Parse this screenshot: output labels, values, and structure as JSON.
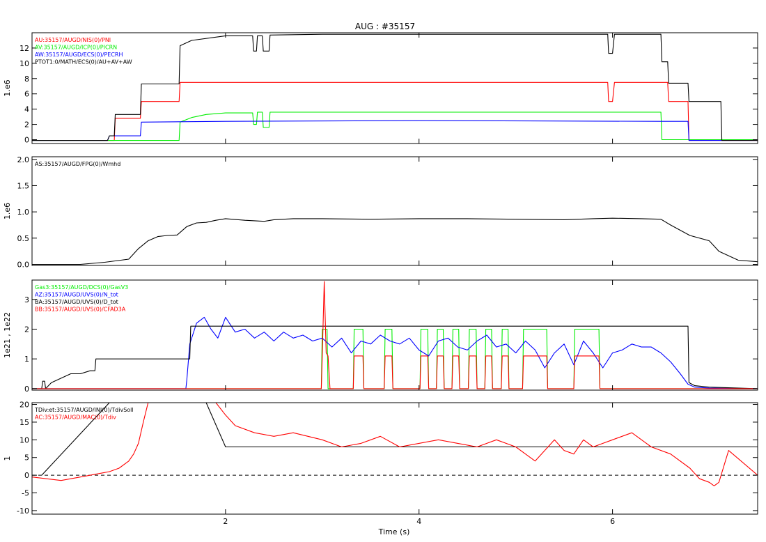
{
  "title": "AUG : #35157",
  "xlabel": "Time (s)",
  "colors": {
    "black": "#000000",
    "red": "#ff0000",
    "green": "#00ee00",
    "blue": "#0000ff"
  },
  "xaxis": {
    "range": [
      0.0,
      7.5
    ],
    "ticks": [
      2,
      4,
      6
    ],
    "tick_labels": [
      "2",
      "4",
      "6"
    ]
  },
  "chart_data": [
    {
      "type": "line",
      "ylabel": "1.e6",
      "ylim": [
        -0.5,
        14.0
      ],
      "yticks": [
        0,
        2,
        4,
        6,
        8,
        10,
        12
      ],
      "ytick_labels": [
        "0",
        "2",
        "4",
        "6",
        "8",
        "10",
        "12"
      ],
      "legend_placement": "top-left",
      "series": [
        {
          "name": "AU:35157/AUGD/NIS(0)/PNI",
          "color": "#ff0000",
          "x": [
            0.0,
            0.85,
            0.86,
            1.12,
            1.13,
            1.52,
            1.53,
            5.95,
            5.96,
            6.0,
            6.02,
            6.57,
            6.58,
            6.78,
            6.79,
            7.5
          ],
          "y": [
            -0.1,
            -0.1,
            2.8,
            2.8,
            5.0,
            5.0,
            7.5,
            7.5,
            5.0,
            5.0,
            7.5,
            7.5,
            5.0,
            5.0,
            -0.1,
            -0.1
          ]
        },
        {
          "name": "AV:35157/AUGD/ICP(0)/PICRN",
          "color": "#00ee00",
          "x": [
            0.0,
            1.52,
            1.53,
            1.65,
            1.8,
            2.0,
            2.28,
            2.29,
            2.32,
            2.33,
            2.38,
            2.39,
            2.45,
            2.46,
            2.5,
            2.52,
            6.5,
            6.51,
            7.5
          ],
          "y": [
            -0.1,
            -0.1,
            2.3,
            2.9,
            3.3,
            3.5,
            3.5,
            2.0,
            2.0,
            3.6,
            3.6,
            1.6,
            1.6,
            3.6,
            3.6,
            3.6,
            3.6,
            0.0,
            0.0
          ]
        },
        {
          "name": "AW:35157/AUGD/ECS(0)/PECRH",
          "color": "#0000ff",
          "x": [
            0.0,
            0.78,
            0.8,
            1.12,
            1.13,
            2.0,
            4.0,
            6.5,
            6.78,
            6.79,
            7.5
          ],
          "y": [
            -0.1,
            -0.1,
            0.5,
            0.5,
            2.3,
            2.4,
            2.5,
            2.4,
            2.4,
            -0.1,
            -0.1
          ]
        },
        {
          "name": "PTOT1:0/MATH/ECS(0)/AU+AV+AW",
          "color": "#000000",
          "x": [
            0.0,
            0.78,
            0.8,
            0.85,
            0.86,
            1.12,
            1.13,
            1.52,
            1.53,
            1.65,
            2.0,
            2.28,
            2.29,
            2.32,
            2.33,
            2.38,
            2.39,
            2.45,
            2.46,
            3.0,
            5.95,
            5.96,
            6.0,
            6.02,
            6.5,
            6.51,
            6.57,
            6.58,
            6.78,
            6.79,
            7.12,
            7.13,
            7.5
          ],
          "y": [
            -0.1,
            -0.1,
            0.5,
            0.5,
            3.3,
            3.3,
            7.3,
            7.3,
            12.3,
            13.0,
            13.6,
            13.6,
            11.6,
            11.6,
            13.6,
            13.6,
            11.6,
            11.6,
            13.7,
            13.8,
            13.8,
            11.3,
            11.3,
            13.8,
            13.8,
            10.2,
            10.2,
            7.4,
            7.4,
            5.0,
            5.0,
            -0.1,
            -0.1
          ]
        }
      ]
    },
    {
      "type": "line",
      "ylabel": "1.e6",
      "ylim": [
        -0.02,
        2.05
      ],
      "yticks": [
        0.0,
        0.5,
        1.0,
        1.5,
        2.0
      ],
      "ytick_labels": [
        "0.0",
        "0.5",
        "1.0",
        "1.5",
        "2.0"
      ],
      "legend_placement": "top-left",
      "series": [
        {
          "name": "AS:35157/AUGD/FPG(0)/Wmhd",
          "color": "#000000",
          "x": [
            0.0,
            0.5,
            0.75,
            1.0,
            1.1,
            1.2,
            1.3,
            1.4,
            1.5,
            1.6,
            1.7,
            1.8,
            1.9,
            2.0,
            2.2,
            2.4,
            2.5,
            2.7,
            3.0,
            3.5,
            4.0,
            4.5,
            5.0,
            5.5,
            5.8,
            6.0,
            6.3,
            6.5,
            6.6,
            6.8,
            7.0,
            7.1,
            7.3,
            7.5
          ],
          "y": [
            0.0,
            0.0,
            0.04,
            0.1,
            0.3,
            0.45,
            0.53,
            0.55,
            0.56,
            0.72,
            0.79,
            0.8,
            0.84,
            0.87,
            0.84,
            0.82,
            0.85,
            0.87,
            0.87,
            0.86,
            0.87,
            0.87,
            0.86,
            0.85,
            0.87,
            0.88,
            0.87,
            0.86,
            0.75,
            0.55,
            0.45,
            0.25,
            0.08,
            0.05
          ]
        }
      ]
    },
    {
      "type": "line",
      "ylabel": "1e21 , 1e22",
      "ylim": [
        -0.05,
        3.65
      ],
      "yticks": [
        0,
        1,
        2,
        3
      ],
      "ytick_labels": [
        "0",
        "1",
        "2",
        "3"
      ],
      "legend_placement": "top-left",
      "series": [
        {
          "name": "Gas3:35157/AUGD/DCS(0)/GasV3",
          "color": "#00ee00",
          "x": [
            0.0,
            2.99,
            3.0,
            3.05,
            3.06,
            3.32,
            3.33,
            3.42,
            3.43,
            3.64,
            3.65,
            3.72,
            3.73,
            4.01,
            4.02,
            4.09,
            4.1,
            4.18,
            4.19,
            4.25,
            4.26,
            4.34,
            4.35,
            4.41,
            4.42,
            4.51,
            4.52,
            4.59,
            4.6,
            4.68,
            4.69,
            4.75,
            4.76,
            4.85,
            4.86,
            4.92,
            4.93,
            5.07,
            5.08,
            5.32,
            5.33,
            5.6,
            5.61,
            5.86,
            5.87,
            7.5
          ],
          "y": [
            0.0,
            0.0,
            2.0,
            2.0,
            0.0,
            0.0,
            2.0,
            2.0,
            0.0,
            0.0,
            2.0,
            2.0,
            0.0,
            0.0,
            2.0,
            2.0,
            0.0,
            0.0,
            2.0,
            2.0,
            0.0,
            0.0,
            2.0,
            2.0,
            0.0,
            0.0,
            2.0,
            2.0,
            0.0,
            0.0,
            2.0,
            2.0,
            0.0,
            0.0,
            2.0,
            2.0,
            0.0,
            0.0,
            2.0,
            2.0,
            0.0,
            0.0,
            2.0,
            2.0,
            0.0,
            0.0
          ]
        },
        {
          "name": "AZ:35157/AUGD/UVS(0)/N_tot",
          "color": "#0000ff",
          "x": [
            0.0,
            1.59,
            1.6,
            1.63,
            1.7,
            1.78,
            1.85,
            1.92,
            2.0,
            2.1,
            2.2,
            2.3,
            2.4,
            2.5,
            2.6,
            2.7,
            2.8,
            2.9,
            3.0,
            3.1,
            3.2,
            3.3,
            3.4,
            3.5,
            3.6,
            3.7,
            3.8,
            3.9,
            4.0,
            4.1,
            4.2,
            4.3,
            4.4,
            4.5,
            4.6,
            4.7,
            4.8,
            4.9,
            5.0,
            5.1,
            5.2,
            5.3,
            5.4,
            5.5,
            5.6,
            5.7,
            5.8,
            5.9,
            6.0,
            6.1,
            6.2,
            6.3,
            6.4,
            6.5,
            6.6,
            6.7,
            6.78,
            6.85,
            7.0,
            7.5
          ],
          "y": [
            0.0,
            0.0,
            0.3,
            1.5,
            2.2,
            2.4,
            2.0,
            1.7,
            2.4,
            1.9,
            2.0,
            1.7,
            1.9,
            1.6,
            1.9,
            1.7,
            1.8,
            1.6,
            1.7,
            1.4,
            1.7,
            1.2,
            1.6,
            1.5,
            1.8,
            1.6,
            1.5,
            1.7,
            1.3,
            1.1,
            1.6,
            1.7,
            1.4,
            1.3,
            1.6,
            1.8,
            1.4,
            1.5,
            1.2,
            1.6,
            1.3,
            0.7,
            1.2,
            1.5,
            0.8,
            1.6,
            1.2,
            0.7,
            1.2,
            1.3,
            1.5,
            1.4,
            1.4,
            1.2,
            0.9,
            0.5,
            0.15,
            0.05,
            0.02,
            0.0
          ]
        },
        {
          "name": "BA:35157/AUGD/UVS(0)/D_tot",
          "color": "#000000",
          "x": [
            0.0,
            0.1,
            0.11,
            0.13,
            0.14,
            0.2,
            0.3,
            0.4,
            0.5,
            0.6,
            0.65,
            0.66,
            1.6,
            1.63,
            1.64,
            6.78,
            6.79,
            6.85,
            7.0,
            7.5
          ],
          "y": [
            0.0,
            0.0,
            0.25,
            0.25,
            0.0,
            0.2,
            0.35,
            0.5,
            0.5,
            0.6,
            0.6,
            1.0,
            1.0,
            1.0,
            2.1,
            2.1,
            0.2,
            0.1,
            0.05,
            0.0
          ]
        },
        {
          "name": "BB:35157/AUGD/UVS(0)/CFAD3A",
          "color": "#ff0000",
          "x": [
            0.0,
            2.99,
            3.0,
            3.02,
            3.04,
            3.06,
            3.08,
            3.32,
            3.33,
            3.42,
            3.43,
            3.64,
            3.65,
            3.72,
            3.73,
            4.01,
            4.02,
            4.09,
            4.1,
            4.18,
            4.19,
            4.25,
            4.26,
            4.34,
            4.35,
            4.41,
            4.42,
            4.51,
            4.52,
            4.59,
            4.6,
            4.68,
            4.69,
            4.75,
            4.76,
            4.85,
            4.86,
            4.92,
            4.93,
            5.07,
            5.08,
            5.32,
            5.33,
            5.6,
            5.61,
            5.86,
            5.87,
            7.5
          ],
          "y": [
            0.0,
            0.0,
            1.1,
            3.6,
            1.2,
            1.1,
            0.0,
            0.0,
            1.1,
            1.1,
            0.0,
            0.0,
            1.1,
            1.1,
            0.0,
            0.0,
            1.1,
            1.1,
            0.0,
            0.0,
            1.1,
            1.1,
            0.0,
            0.0,
            1.1,
            1.1,
            0.0,
            0.0,
            1.1,
            1.1,
            0.0,
            0.0,
            1.1,
            1.1,
            0.0,
            0.0,
            1.1,
            1.1,
            0.0,
            0.0,
            1.1,
            1.1,
            0.0,
            0.0,
            1.1,
            1.1,
            0.0,
            0.0
          ]
        }
      ]
    },
    {
      "type": "line",
      "ylabel": "1",
      "ylim": [
        -11,
        20.5
      ],
      "yticks": [
        -10,
        -5,
        0,
        5,
        10,
        15,
        20
      ],
      "ytick_labels": [
        "-10",
        "-5",
        "0",
        "5",
        "10",
        "15",
        "20"
      ],
      "zero_line": "dashed",
      "legend_placement": "top-left",
      "series": [
        {
          "name": "TDiv:et:35157/AUGD/INJ(0)/TdivSoll",
          "color": "#000000",
          "x": [
            0.1,
            0.8,
            1.8,
            2.0,
            7.5
          ],
          "y": [
            0.0,
            20.5,
            20.5,
            8.0,
            8.0
          ]
        },
        {
          "name": "AC:35157/AUGD/MAC(0)/Tdiv",
          "color": "#ff0000",
          "x": [
            0.0,
            0.3,
            0.5,
            0.7,
            0.8,
            0.9,
            1.0,
            1.05,
            1.1,
            1.15,
            1.2,
            1.25,
            1.9,
            2.0,
            2.1,
            2.3,
            2.5,
            2.7,
            3.0,
            3.2,
            3.4,
            3.6,
            3.8,
            4.0,
            4.2,
            4.4,
            4.6,
            4.8,
            5.0,
            5.1,
            5.2,
            5.3,
            5.4,
            5.5,
            5.6,
            5.7,
            5.8,
            6.0,
            6.2,
            6.4,
            6.6,
            6.8,
            6.9,
            7.0,
            7.05,
            7.1,
            7.2,
            7.5
          ],
          "y": [
            -0.5,
            -1.5,
            -0.5,
            0.5,
            1.0,
            2.0,
            4.0,
            6.0,
            9.0,
            15.0,
            20.5,
            20.5,
            20.5,
            17.0,
            14.0,
            12.0,
            11.0,
            12.0,
            10.0,
            8.0,
            9.0,
            11.0,
            8.0,
            9.0,
            10.0,
            9.0,
            8.0,
            10.0,
            8.0,
            6.0,
            4.0,
            7.0,
            10.0,
            7.0,
            6.0,
            10.0,
            8.0,
            10.0,
            12.0,
            8.0,
            6.0,
            2.0,
            -1.0,
            -2.0,
            -3.0,
            -2.0,
            7.0,
            0.0
          ]
        }
      ]
    }
  ]
}
